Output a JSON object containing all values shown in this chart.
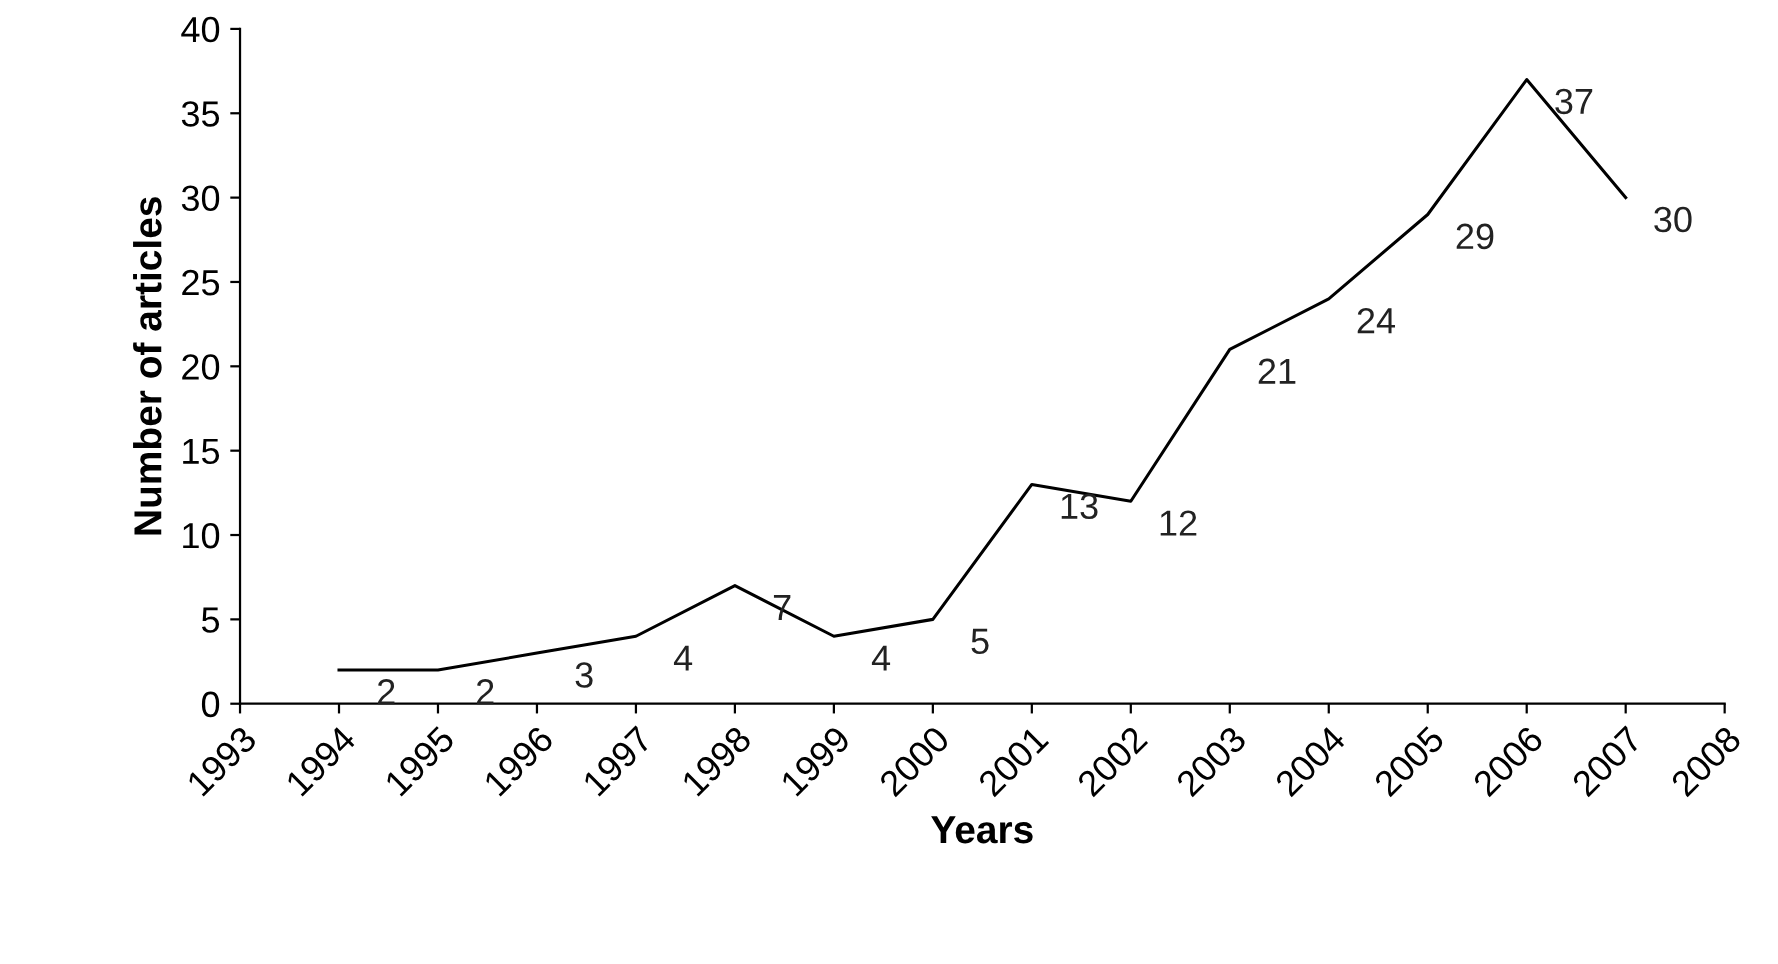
{
  "chart_data": {
    "type": "line",
    "xlabel": "Years",
    "ylabel": "Number of articles",
    "categories": [
      "1993",
      "1994",
      "1995",
      "1996",
      "1997",
      "1998",
      "1999",
      "2000",
      "2001",
      "2002",
      "2003",
      "2004",
      "2005",
      "2006",
      "2007",
      "2008"
    ],
    "series": [
      {
        "color": "#000000",
        "values": [
          null,
          2,
          2,
          3,
          4,
          7,
          4,
          5,
          13,
          12,
          21,
          24,
          29,
          37,
          30,
          null
        ]
      }
    ],
    "ylim": [
      0,
      40
    ],
    "yticks": [
      0,
      5,
      10,
      15,
      20,
      25,
      30,
      35,
      40
    ],
    "data_labels": true,
    "grid": false,
    "marker": "none",
    "line_style": "solid"
  }
}
